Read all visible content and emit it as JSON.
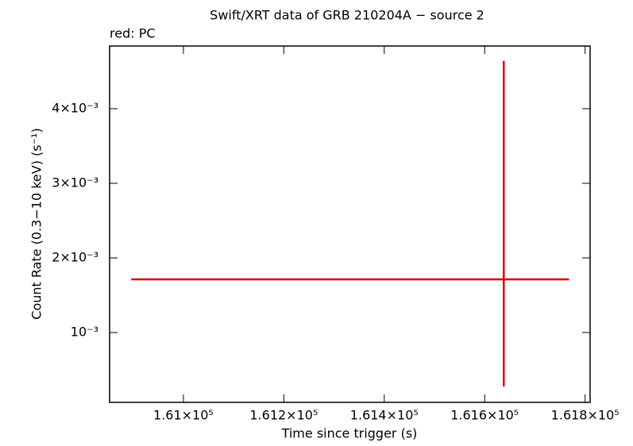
{
  "chart_data": {
    "type": "errorbar",
    "title": "Swift/XRT data of GRB 210204A − source 2",
    "subtitle": "red: PC",
    "x_label": "Time since trigger (s)",
    "y_label": "Count Rate (0.3−10 keV) (s⁻¹)",
    "xlim": [
      160853,
      161810
    ],
    "ylim": [
      6.4e-05,
      0.00484
    ],
    "xticks": [
      {
        "value": 161000,
        "label": "1.61×10⁵"
      },
      {
        "value": 161200,
        "label": "1.612×10⁵"
      },
      {
        "value": 161400,
        "label": "1.614×10⁵"
      },
      {
        "value": 161600,
        "label": "1.616×10⁵"
      },
      {
        "value": 161800,
        "label": "1.618×10⁵"
      }
    ],
    "yticks": [
      {
        "value": 0.001,
        "label": "10⁻³"
      },
      {
        "value": 0.002,
        "label": "2×10⁻³"
      },
      {
        "value": 0.003,
        "label": "3×10⁻³"
      },
      {
        "value": 0.004,
        "label": "4×10⁻³"
      }
    ],
    "series": [
      {
        "color": "#e00000",
        "x": [
          161638
        ],
        "xerr_minus": [
          742
        ],
        "xerr_plus": [
          130
        ],
        "values": [
          0.001713
        ],
        "yerr_minus": [
          0.001436
        ],
        "yerr_plus": [
          0.002927
        ]
      }
    ]
  }
}
